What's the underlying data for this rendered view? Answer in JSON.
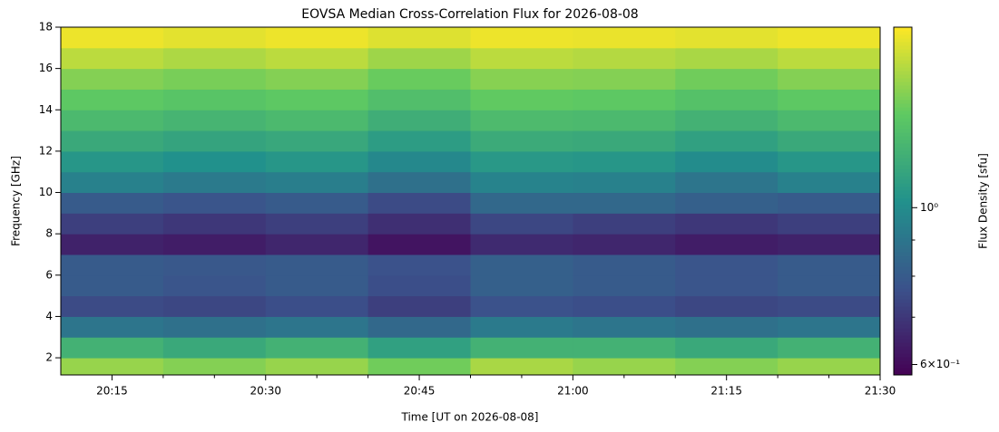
{
  "chart_data": {
    "type": "heatmap",
    "title": "EOVSA Median Cross-Correlation Flux for 2026-08-08",
    "x_label": "Time [UT on 2026-08-08]",
    "y_label": "Frequency [GHz]",
    "colorbar_label": "Flux Density [sfu]",
    "x": [
      "20:10",
      "20:20",
      "20:30",
      "20:40",
      "20:50",
      "21:00",
      "21:10",
      "21:20",
      "21:30"
    ],
    "y": [
      1.17,
      2,
      3,
      4,
      5,
      6,
      7,
      8,
      9,
      10,
      11,
      12,
      13,
      14,
      15,
      16,
      17,
      18
    ],
    "values": [
      [
        1.5,
        1.45,
        1.5,
        1.4,
        1.55,
        1.5,
        1.45,
        1.5
      ],
      [
        1.2,
        1.15,
        1.2,
        1.1,
        1.2,
        1.2,
        1.15,
        1.2
      ],
      [
        0.9,
        0.88,
        0.9,
        0.85,
        0.92,
        0.9,
        0.88,
        0.9
      ],
      [
        0.75,
        0.74,
        0.76,
        0.72,
        0.77,
        0.76,
        0.74,
        0.75
      ],
      [
        0.8,
        0.78,
        0.8,
        0.76,
        0.82,
        0.8,
        0.78,
        0.8
      ],
      [
        0.8,
        0.79,
        0.8,
        0.77,
        0.82,
        0.8,
        0.78,
        0.8
      ],
      [
        0.65,
        0.64,
        0.66,
        0.62,
        0.67,
        0.66,
        0.64,
        0.65
      ],
      [
        0.72,
        0.7,
        0.72,
        0.68,
        0.74,
        0.72,
        0.7,
        0.72
      ],
      [
        0.8,
        0.78,
        0.8,
        0.75,
        0.85,
        0.85,
        0.82,
        0.8
      ],
      [
        0.95,
        0.92,
        0.94,
        0.88,
        0.96,
        0.95,
        0.9,
        0.95
      ],
      [
        1.05,
        1.02,
        1.05,
        0.98,
        1.06,
        1.05,
        1.0,
        1.05
      ],
      [
        1.15,
        1.12,
        1.14,
        1.08,
        1.16,
        1.15,
        1.1,
        1.15
      ],
      [
        1.25,
        1.22,
        1.25,
        1.18,
        1.26,
        1.25,
        1.2,
        1.25
      ],
      [
        1.35,
        1.32,
        1.35,
        1.28,
        1.36,
        1.35,
        1.3,
        1.35
      ],
      [
        1.45,
        1.42,
        1.45,
        1.38,
        1.46,
        1.45,
        1.4,
        1.45
      ],
      [
        1.6,
        1.56,
        1.6,
        1.52,
        1.6,
        1.58,
        1.55,
        1.6
      ],
      [
        1.75,
        1.72,
        1.75,
        1.7,
        1.75,
        1.74,
        1.72,
        1.75
      ]
    ],
    "xlim": [
      "20:10",
      "21:30"
    ],
    "xticks": [
      "20:15",
      "20:30",
      "20:45",
      "21:00",
      "21:15",
      "21:30"
    ],
    "xminorticks": [
      "20:20",
      "20:25",
      "20:35",
      "20:40",
      "20:50",
      "20:55",
      "21:05",
      "21:10",
      "21:20",
      "21:25"
    ],
    "ylim": [
      1.17,
      18
    ],
    "yticks": [
      2,
      4,
      6,
      8,
      10,
      12,
      14,
      16,
      18
    ],
    "clim": [
      0.58,
      1.8
    ],
    "color_scale": "log",
    "colorbar_ticks": [
      {
        "value": 1,
        "label": "10⁰"
      },
      {
        "value": 0.6,
        "label": "6×10⁻¹"
      }
    ],
    "colorbar_minorticks": [
      0.7,
      0.8,
      0.9
    ],
    "colormap": [
      "#440154",
      "#3b528b",
      "#21918c",
      "#5ec962",
      "#fde725"
    ]
  }
}
